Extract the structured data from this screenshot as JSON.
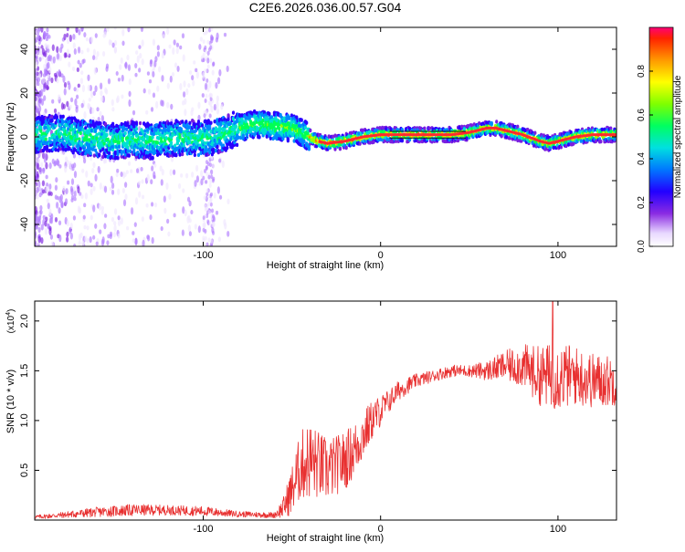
{
  "page": {
    "title": "C2E6.2026.036.00.57.G04"
  },
  "colors": {
    "line": "#e83030",
    "axis": "#000000",
    "ridge_low": "#3b1cff",
    "ridge_high": "#ff2a00"
  },
  "chart_data": [
    {
      "id": "spectrogram",
      "type": "heatmap",
      "title": "C2E6.2026.036.00.57.G04",
      "xlabel": "Height of straight line (km)",
      "ylabel": "Frequency (Hz)",
      "xlim": [
        -195,
        133
      ],
      "ylim": [
        -50,
        50
      ],
      "xticks": [
        -100,
        0,
        100
      ],
      "xtick_labels": [
        "-100",
        "0",
        "100"
      ],
      "yticks": [
        -40,
        -20,
        0,
        20,
        40
      ],
      "ytick_labels": [
        "-40",
        "-20",
        "0",
        "20",
        "40"
      ],
      "ridge_track": [
        [
          -195,
          1
        ],
        [
          -180,
          2
        ],
        [
          -170,
          0
        ],
        [
          -160,
          -1
        ],
        [
          -150,
          -2
        ],
        [
          -140,
          -1
        ],
        [
          -130,
          -2
        ],
        [
          -120,
          -1
        ],
        [
          -110,
          0
        ],
        [
          -100,
          -1
        ],
        [
          -90,
          1
        ],
        [
          -80,
          4
        ],
        [
          -70,
          6
        ],
        [
          -60,
          5
        ],
        [
          -50,
          4
        ],
        [
          -45,
          2
        ],
        [
          -40,
          0
        ],
        [
          -35,
          -2
        ],
        [
          -30,
          -3
        ],
        [
          -20,
          -2
        ],
        [
          -10,
          0
        ],
        [
          0,
          1
        ],
        [
          10,
          1
        ],
        [
          20,
          1
        ],
        [
          30,
          1
        ],
        [
          40,
          1
        ],
        [
          50,
          2
        ],
        [
          55,
          3
        ],
        [
          60,
          4
        ],
        [
          65,
          4
        ],
        [
          70,
          3
        ],
        [
          80,
          1
        ],
        [
          90,
          -2
        ],
        [
          95,
          -3
        ],
        [
          100,
          -2
        ],
        [
          110,
          0
        ],
        [
          120,
          1
        ],
        [
          133,
          1
        ]
      ],
      "colorbar": {
        "label": "Normalized spectral amplitude",
        "range": [
          0,
          1
        ],
        "ticks": [
          0.0,
          0.2,
          0.4,
          0.6,
          0.8
        ],
        "tick_labels": [
          "0.0",
          "0.2",
          "0.4",
          "0.6",
          "0.8"
        ]
      }
    },
    {
      "id": "snr",
      "type": "line",
      "title": "",
      "xlabel": "Height of straight line (km)",
      "ylabel": "SNR (10 * v/v)",
      "scale_label": "(x10",
      "scale_exp": "4",
      "scale_close": ")",
      "xlim": [
        -195,
        133
      ],
      "ylim": [
        0,
        2.2
      ],
      "xticks": [
        -100,
        0,
        100
      ],
      "xtick_labels": [
        "-100",
        "0",
        "100"
      ],
      "yticks": [
        0.5,
        1.0,
        1.5,
        2.0
      ],
      "ytick_labels": [
        "0.5",
        "1.0",
        "1.5",
        "2.0"
      ],
      "envelope": {
        "x": [
          -195,
          -180,
          -160,
          -140,
          -120,
          -100,
          -80,
          -60,
          -55,
          -50,
          -45,
          -40,
          -35,
          -30,
          -25,
          -20,
          -15,
          -10,
          -5,
          0,
          5,
          10,
          20,
          30,
          40,
          50,
          60,
          70,
          80,
          90,
          100,
          110,
          120,
          133
        ],
        "mean": [
          0.03,
          0.05,
          0.08,
          0.1,
          0.1,
          0.09,
          0.06,
          0.05,
          0.12,
          0.3,
          0.55,
          0.6,
          0.55,
          0.5,
          0.55,
          0.6,
          0.7,
          0.85,
          1.0,
          1.1,
          1.2,
          1.3,
          1.4,
          1.45,
          1.5,
          1.5,
          1.5,
          1.55,
          1.55,
          1.45,
          1.45,
          1.45,
          1.4,
          1.4
        ],
        "noise": [
          0.02,
          0.03,
          0.05,
          0.06,
          0.05,
          0.05,
          0.03,
          0.03,
          0.1,
          0.25,
          0.35,
          0.4,
          0.35,
          0.32,
          0.3,
          0.3,
          0.28,
          0.25,
          0.2,
          0.16,
          0.12,
          0.1,
          0.07,
          0.06,
          0.06,
          0.06,
          0.1,
          0.15,
          0.22,
          0.3,
          0.35,
          0.3,
          0.28,
          0.25
        ]
      },
      "peak": {
        "x": 97,
        "y": 2.2
      }
    }
  ]
}
